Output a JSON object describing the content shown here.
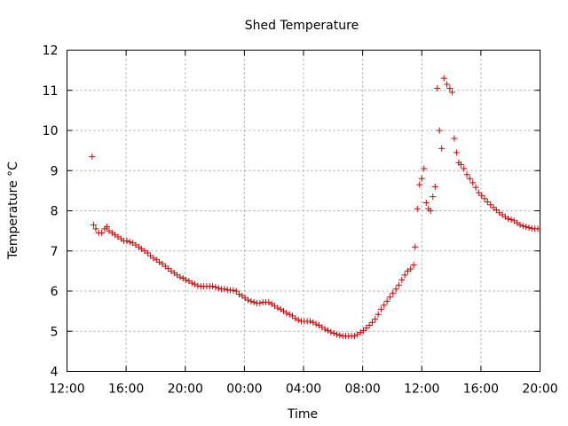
{
  "chart_data": {
    "type": "scatter",
    "title": "Shed Temperature",
    "xlabel": "Time",
    "ylabel": "Temperature °C",
    "x_unit": "hours",
    "xlim": [
      12,
      44
    ],
    "ylim": [
      4,
      12
    ],
    "x_ticks": [
      {
        "value": 12,
        "label": "12:00"
      },
      {
        "value": 16,
        "label": "16:00"
      },
      {
        "value": 20,
        "label": "20:00"
      },
      {
        "value": 24,
        "label": "00:00"
      },
      {
        "value": 28,
        "label": "04:00"
      },
      {
        "value": 32,
        "label": "08:00"
      },
      {
        "value": 36,
        "label": "12:00"
      },
      {
        "value": 40,
        "label": "16:00"
      },
      {
        "value": 44,
        "label": "20:00"
      }
    ],
    "y_ticks": [
      4,
      5,
      6,
      7,
      8,
      9,
      10,
      11,
      12
    ],
    "grid": true,
    "marker": "+",
    "color": "#cc0000",
    "series": [
      {
        "points": [
          [
            13.7,
            9.35
          ],
          [
            13.8,
            7.65
          ],
          [
            13.95,
            7.55
          ],
          [
            14.15,
            7.45
          ],
          [
            14.35,
            7.45
          ],
          [
            14.55,
            7.55
          ],
          [
            14.7,
            7.6
          ],
          [
            14.85,
            7.5
          ],
          [
            15.05,
            7.45
          ],
          [
            15.25,
            7.4
          ],
          [
            15.45,
            7.35
          ],
          [
            15.65,
            7.3
          ],
          [
            15.85,
            7.25
          ],
          [
            16.05,
            7.25
          ],
          [
            16.25,
            7.22
          ],
          [
            16.45,
            7.2
          ],
          [
            16.65,
            7.15
          ],
          [
            16.85,
            7.1
          ],
          [
            17.05,
            7.05
          ],
          [
            17.25,
            7.0
          ],
          [
            17.45,
            6.95
          ],
          [
            17.65,
            6.88
          ],
          [
            17.85,
            6.82
          ],
          [
            18.05,
            6.78
          ],
          [
            18.25,
            6.72
          ],
          [
            18.45,
            6.68
          ],
          [
            18.65,
            6.62
          ],
          [
            18.85,
            6.56
          ],
          [
            19.05,
            6.5
          ],
          [
            19.25,
            6.45
          ],
          [
            19.45,
            6.4
          ],
          [
            19.65,
            6.35
          ],
          [
            19.85,
            6.32
          ],
          [
            20.05,
            6.28
          ],
          [
            20.25,
            6.25
          ],
          [
            20.45,
            6.2
          ],
          [
            20.65,
            6.17
          ],
          [
            20.85,
            6.13
          ],
          [
            21.05,
            6.12
          ],
          [
            21.25,
            6.12
          ],
          [
            21.45,
            6.12
          ],
          [
            21.65,
            6.12
          ],
          [
            21.85,
            6.12
          ],
          [
            22.05,
            6.1
          ],
          [
            22.25,
            6.07
          ],
          [
            22.45,
            6.05
          ],
          [
            22.65,
            6.05
          ],
          [
            22.85,
            6.03
          ],
          [
            23.05,
            6.02
          ],
          [
            23.25,
            6.02
          ],
          [
            23.45,
            6.0
          ],
          [
            23.65,
            5.92
          ],
          [
            23.85,
            5.88
          ],
          [
            24.05,
            5.83
          ],
          [
            24.25,
            5.78
          ],
          [
            24.45,
            5.75
          ],
          [
            24.65,
            5.72
          ],
          [
            24.85,
            5.7
          ],
          [
            25.05,
            5.7
          ],
          [
            25.25,
            5.72
          ],
          [
            25.45,
            5.72
          ],
          [
            25.65,
            5.72
          ],
          [
            25.85,
            5.68
          ],
          [
            26.05,
            5.63
          ],
          [
            26.25,
            5.58
          ],
          [
            26.45,
            5.55
          ],
          [
            26.65,
            5.5
          ],
          [
            26.85,
            5.45
          ],
          [
            27.05,
            5.42
          ],
          [
            27.25,
            5.38
          ],
          [
            27.45,
            5.32
          ],
          [
            27.65,
            5.28
          ],
          [
            27.85,
            5.25
          ],
          [
            28.05,
            5.25
          ],
          [
            28.25,
            5.25
          ],
          [
            28.45,
            5.25
          ],
          [
            28.65,
            5.22
          ],
          [
            28.85,
            5.18
          ],
          [
            29.05,
            5.15
          ],
          [
            29.25,
            5.1
          ],
          [
            29.45,
            5.05
          ],
          [
            29.65,
            5.02
          ],
          [
            29.85,
            4.98
          ],
          [
            30.05,
            4.95
          ],
          [
            30.25,
            4.92
          ],
          [
            30.45,
            4.9
          ],
          [
            30.65,
            4.88
          ],
          [
            30.85,
            4.88
          ],
          [
            31.05,
            4.88
          ],
          [
            31.25,
            4.88
          ],
          [
            31.45,
            4.88
          ],
          [
            31.65,
            4.92
          ],
          [
            31.85,
            4.97
          ],
          [
            32.05,
            5.02
          ],
          [
            32.25,
            5.08
          ],
          [
            32.45,
            5.15
          ],
          [
            32.65,
            5.22
          ],
          [
            32.85,
            5.3
          ],
          [
            33.05,
            5.42
          ],
          [
            33.25,
            5.55
          ],
          [
            33.45,
            5.65
          ],
          [
            33.65,
            5.75
          ],
          [
            33.85,
            5.85
          ],
          [
            34.05,
            5.95
          ],
          [
            34.25,
            6.05
          ],
          [
            34.45,
            6.15
          ],
          [
            34.65,
            6.28
          ],
          [
            34.85,
            6.4
          ],
          [
            35.05,
            6.5
          ],
          [
            35.25,
            6.55
          ],
          [
            35.45,
            6.65
          ],
          [
            35.55,
            7.1
          ],
          [
            35.7,
            8.05
          ],
          [
            35.85,
            8.65
          ],
          [
            36.0,
            8.8
          ],
          [
            36.15,
            9.05
          ],
          [
            36.3,
            8.2
          ],
          [
            36.45,
            8.05
          ],
          [
            36.6,
            8.0
          ],
          [
            36.75,
            8.35
          ],
          [
            36.9,
            8.6
          ],
          [
            37.05,
            11.05
          ],
          [
            37.2,
            10.0
          ],
          [
            37.35,
            9.55
          ],
          [
            37.5,
            11.3
          ],
          [
            37.7,
            11.15
          ],
          [
            37.9,
            11.05
          ],
          [
            38.05,
            10.95
          ],
          [
            38.2,
            9.8
          ],
          [
            38.35,
            9.45
          ],
          [
            38.5,
            9.2
          ],
          [
            38.65,
            9.15
          ],
          [
            38.85,
            9.05
          ],
          [
            39.05,
            8.9
          ],
          [
            39.25,
            8.8
          ],
          [
            39.45,
            8.7
          ],
          [
            39.65,
            8.58
          ],
          [
            39.85,
            8.45
          ],
          [
            40.05,
            8.38
          ],
          [
            40.25,
            8.3
          ],
          [
            40.45,
            8.22
          ],
          [
            40.65,
            8.15
          ],
          [
            40.85,
            8.08
          ],
          [
            41.05,
            8.02
          ],
          [
            41.25,
            7.95
          ],
          [
            41.45,
            7.9
          ],
          [
            41.65,
            7.85
          ],
          [
            41.85,
            7.8
          ],
          [
            42.05,
            7.78
          ],
          [
            42.25,
            7.75
          ],
          [
            42.45,
            7.7
          ],
          [
            42.65,
            7.65
          ],
          [
            42.85,
            7.62
          ],
          [
            43.05,
            7.6
          ],
          [
            43.25,
            7.58
          ],
          [
            43.45,
            7.56
          ],
          [
            43.65,
            7.55
          ],
          [
            43.85,
            7.55
          ]
        ]
      }
    ]
  }
}
